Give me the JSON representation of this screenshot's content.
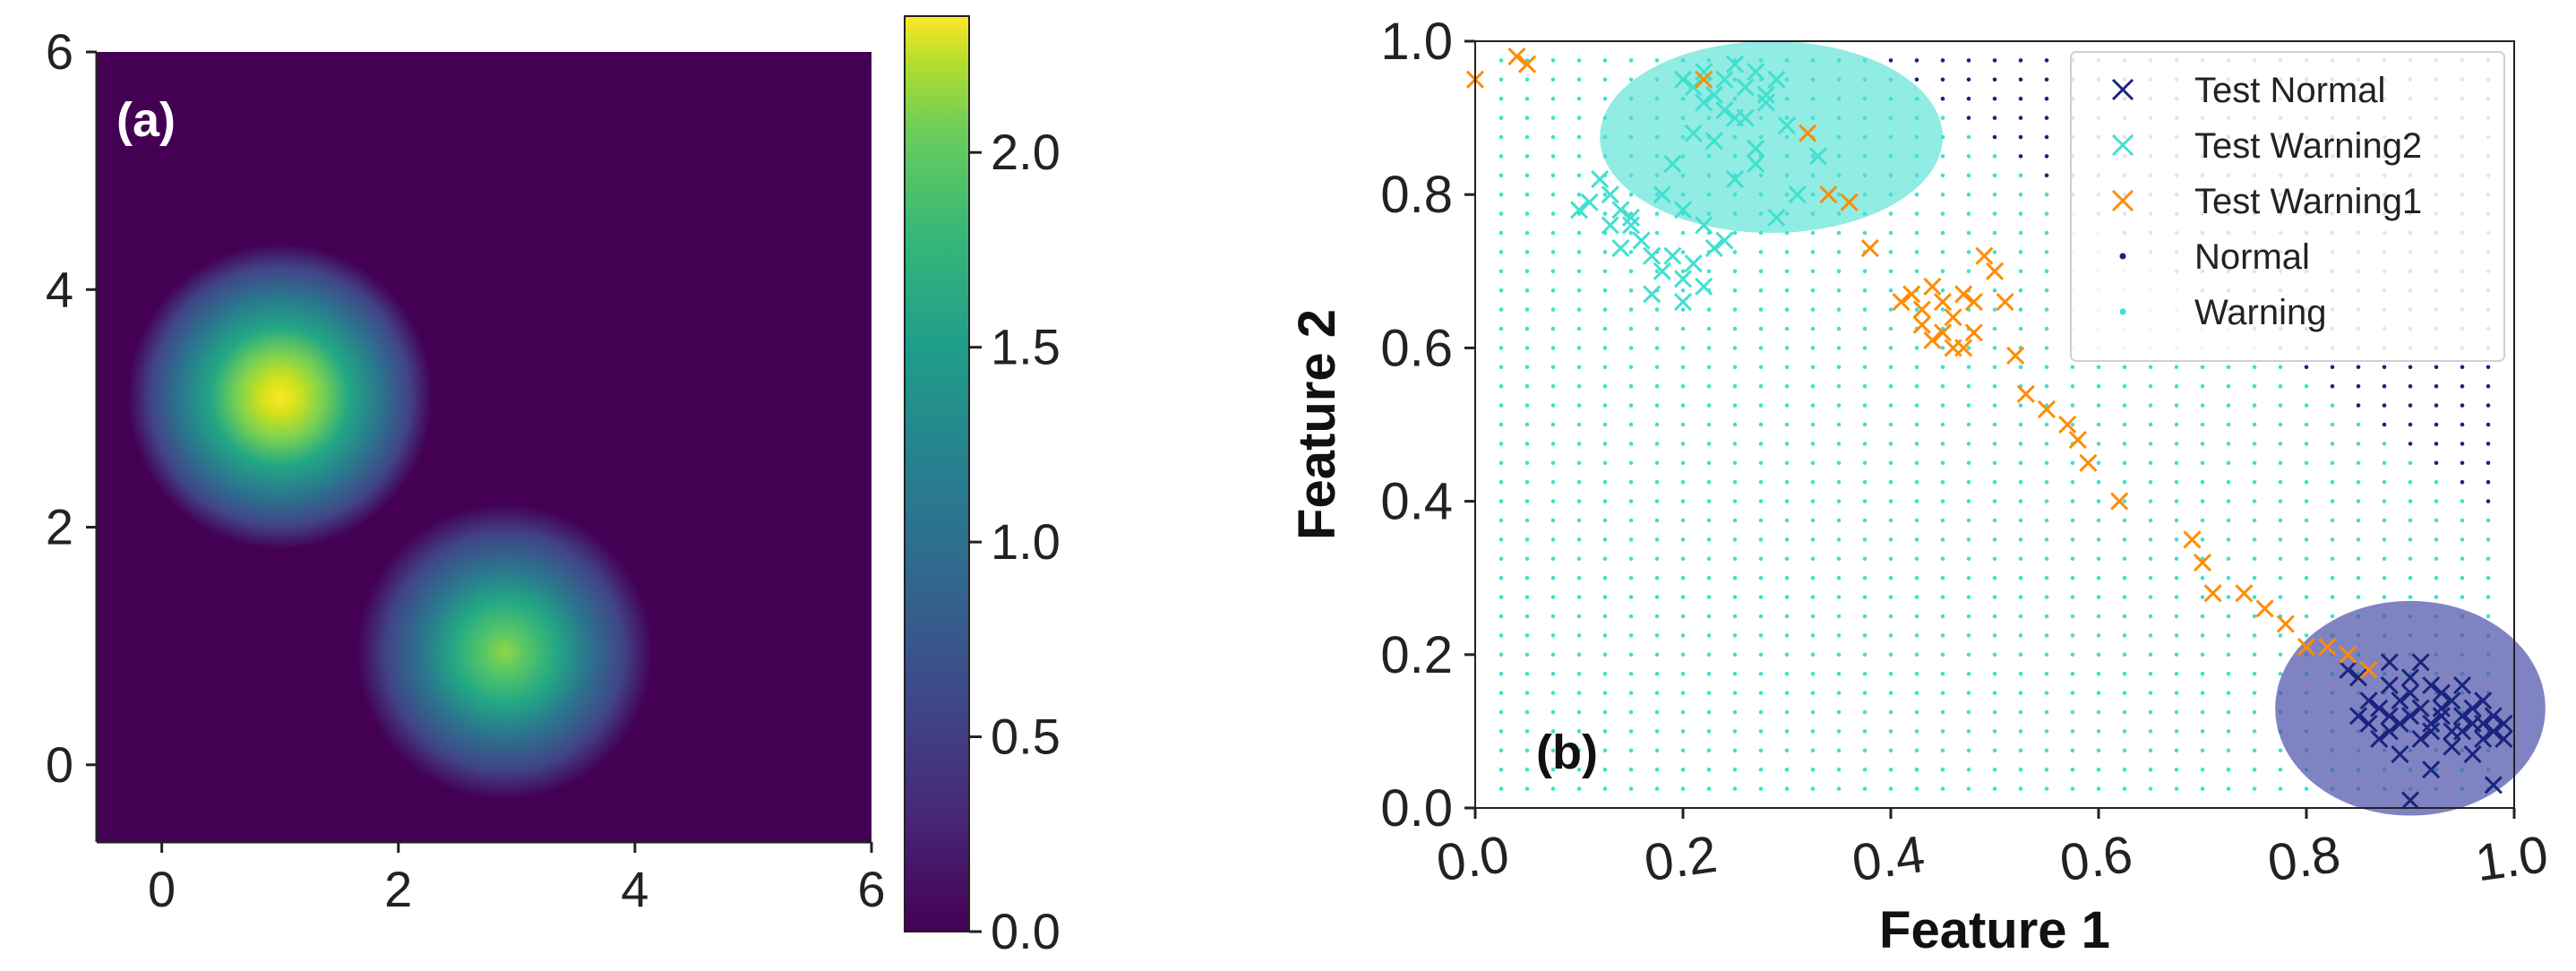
{
  "chart_data": [
    {
      "type": "heatmap",
      "panel_label": "(a)",
      "xlim": [
        -0.55,
        6
      ],
      "ylim": [
        -0.65,
        6
      ],
      "xticks": [
        "0",
        "2",
        "4",
        "6"
      ],
      "yticks": [
        "0",
        "2",
        "4",
        "6"
      ],
      "colorbar": {
        "min": 0.0,
        "max": 2.35,
        "ticks": [
          "0.0",
          "0.5",
          "1.0",
          "1.5",
          "2.0"
        ],
        "colormap": "viridis"
      },
      "peaks": [
        {
          "x": 1.0,
          "y": 3.1,
          "value": 2.3,
          "sigma": 0.65
        },
        {
          "x": 2.9,
          "y": 0.95,
          "value": 1.75,
          "sigma": 0.65
        }
      ],
      "colors": {
        "background": "#440154",
        "mid": "#21918c",
        "high": "#5ec962",
        "top": "#fde725"
      }
    },
    {
      "type": "scatter",
      "panel_label": "(b)",
      "xlabel": "Feature 1",
      "ylabel": "Feature 2",
      "xlim": [
        0.0,
        1.0
      ],
      "ylim": [
        0.0,
        1.0
      ],
      "xticks": [
        "0.0",
        "0.2",
        "0.4",
        "0.6",
        "0.8",
        "1.0"
      ],
      "yticks": [
        "0.0",
        "0.2",
        "0.4",
        "0.6",
        "0.8",
        "1.0"
      ],
      "legend_position": "top-right",
      "legend": [
        {
          "label": "Test Normal",
          "marker": "x",
          "color": "#1a237e"
        },
        {
          "label": "Test Warning2",
          "marker": "x",
          "color": "#40e0d0"
        },
        {
          "label": "Test Warning1",
          "marker": "x",
          "color": "#ff8c00"
        },
        {
          "label": "Normal",
          "marker": "dot",
          "color": "#1a237e"
        },
        {
          "label": "Warning",
          "marker": "dot",
          "color": "#40e0d0"
        }
      ],
      "regions": [
        {
          "name": "warning-ellipse",
          "cx": 0.285,
          "cy": 0.875,
          "rx": 0.165,
          "ry": 0.125,
          "color": "#48e0d0"
        },
        {
          "name": "normal-ellipse",
          "cx": 0.9,
          "cy": 0.13,
          "rx": 0.13,
          "ry": 0.14,
          "color": "#4a4fa8"
        }
      ],
      "series": [
        {
          "name": "Test Normal",
          "color": "#1a237e",
          "x": [
            0.85,
            0.86,
            0.87,
            0.88,
            0.89,
            0.9,
            0.91,
            0.92,
            0.93,
            0.94,
            0.95,
            0.96,
            0.97,
            0.98,
            0.99,
            0.86,
            0.88,
            0.9,
            0.92,
            0.94,
            0.96,
            0.98,
            0.87,
            0.89,
            0.91,
            0.93,
            0.95,
            0.97,
            0.99,
            0.9,
            0.92,
            0.94,
            0.88,
            0.96,
            0.91,
            0.93,
            0.95,
            0.97,
            0.89,
            0.84,
            0.9,
            0.92,
            0.98,
            0.88,
            0.85
          ],
          "y": [
            0.12,
            0.11,
            0.13,
            0.1,
            0.14,
            0.12,
            0.09,
            0.11,
            0.13,
            0.1,
            0.12,
            0.11,
            0.09,
            0.1,
            0.11,
            0.14,
            0.12,
            0.15,
            0.1,
            0.14,
            0.13,
            0.12,
            0.09,
            0.11,
            0.13,
            0.12,
            0.1,
            0.11,
            0.09,
            0.17,
            0.16,
            0.08,
            0.16,
            0.07,
            0.19,
            0.15,
            0.16,
            0.14,
            0.07,
            0.18,
            0.01,
            0.05,
            0.03,
            0.19,
            0.17
          ]
        },
        {
          "name": "Test Warning2",
          "color": "#40e0d0",
          "x": [
            0.2,
            0.21,
            0.22,
            0.23,
            0.24,
            0.25,
            0.26,
            0.27,
            0.28,
            0.29,
            0.22,
            0.24,
            0.26,
            0.28,
            0.3,
            0.21,
            0.23,
            0.25,
            0.27,
            0.19,
            0.18,
            0.2,
            0.22,
            0.24,
            0.17,
            0.16,
            0.15,
            0.14,
            0.13,
            0.12,
            0.11,
            0.1,
            0.18,
            0.2,
            0.22,
            0.17,
            0.19,
            0.21,
            0.23,
            0.25,
            0.27,
            0.29,
            0.31,
            0.33,
            0.2,
            0.15,
            0.14,
            0.13
          ],
          "y": [
            0.95,
            0.94,
            0.96,
            0.93,
            0.95,
            0.97,
            0.94,
            0.96,
            0.93,
            0.95,
            0.92,
            0.91,
            0.9,
            0.92,
            0.89,
            0.88,
            0.87,
            0.9,
            0.86,
            0.84,
            0.8,
            0.78,
            0.76,
            0.74,
            0.72,
            0.74,
            0.76,
            0.78,
            0.8,
            0.82,
            0.79,
            0.78,
            0.7,
            0.69,
            0.68,
            0.67,
            0.72,
            0.71,
            0.73,
            0.82,
            0.84,
            0.77,
            0.8,
            0.85,
            0.66,
            0.77,
            0.73,
            0.76
          ]
        },
        {
          "name": "Test Warning1",
          "color": "#ff8c00",
          "x": [
            0.0,
            0.04,
            0.05,
            0.22,
            0.32,
            0.34,
            0.36,
            0.38,
            0.41,
            0.42,
            0.43,
            0.44,
            0.45,
            0.43,
            0.44,
            0.46,
            0.47,
            0.48,
            0.49,
            0.5,
            0.47,
            0.48,
            0.45,
            0.46,
            0.51,
            0.52,
            0.53,
            0.55,
            0.57,
            0.58,
            0.59,
            0.62,
            0.69,
            0.7,
            0.71,
            0.74,
            0.76,
            0.78,
            0.8,
            0.82,
            0.84,
            0.86
          ],
          "y": [
            0.95,
            0.98,
            0.97,
            0.95,
            0.88,
            0.8,
            0.79,
            0.73,
            0.66,
            0.67,
            0.65,
            0.68,
            0.66,
            0.63,
            0.61,
            0.64,
            0.6,
            0.62,
            0.72,
            0.7,
            0.67,
            0.66,
            0.62,
            0.6,
            0.66,
            0.59,
            0.54,
            0.52,
            0.5,
            0.48,
            0.45,
            0.4,
            0.35,
            0.32,
            0.28,
            0.28,
            0.26,
            0.24,
            0.21,
            0.21,
            0.2,
            0.18
          ]
        }
      ],
      "grid_points": {
        "spacing": 0.025,
        "warning_color": "#40e0d0",
        "normal_color": "#1a237e",
        "boundary": "diagonal from (0.37,1.0) to (1.0,0.37)"
      }
    }
  ]
}
